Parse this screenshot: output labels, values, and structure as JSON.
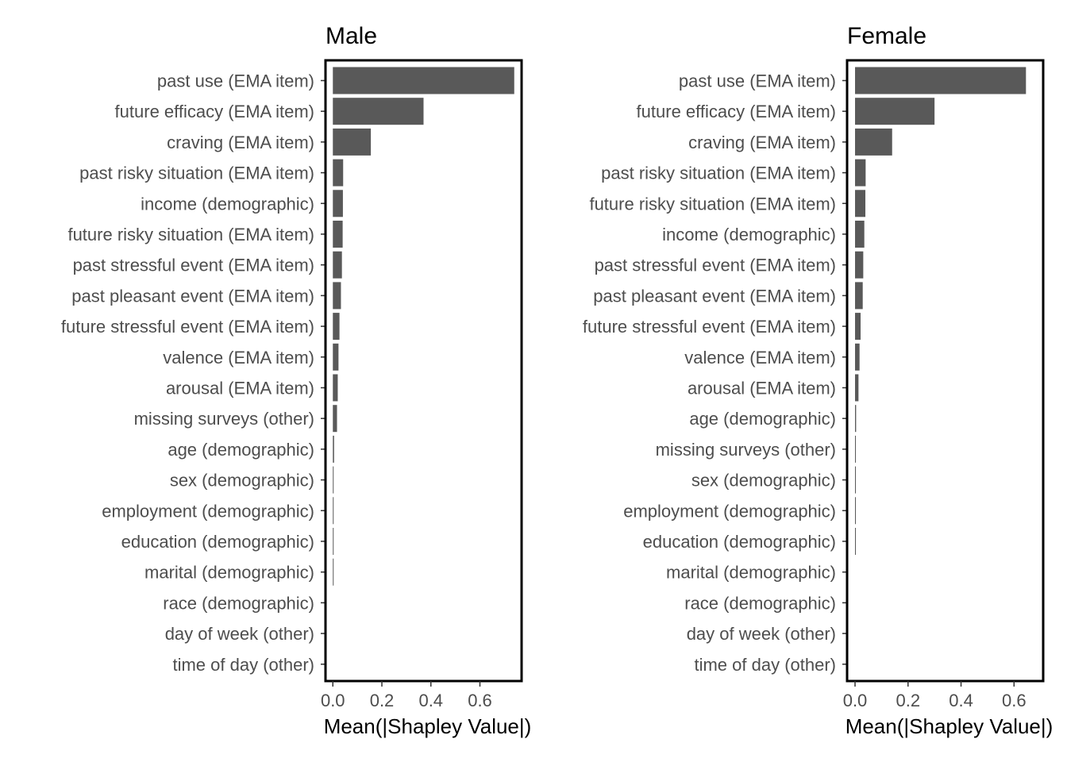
{
  "chart_data": [
    {
      "type": "bar",
      "orientation": "horizontal",
      "title": "Male",
      "xlabel": "Mean(|Shapley Value|)",
      "xlim": [
        -0.03,
        0.77
      ],
      "xticks": [
        {
          "value": 0.0,
          "label": "0.0"
        },
        {
          "value": 0.2,
          "label": "0.2"
        },
        {
          "value": 0.4,
          "label": "0.4"
        },
        {
          "value": 0.6,
          "label": "0.6"
        }
      ],
      "categories": [
        "past use (EMA item)",
        "future efficacy (EMA item)",
        "craving (EMA item)",
        "past risky situation (EMA item)",
        "income (demographic)",
        "future risky situation (EMA item)",
        "past stressful event (EMA item)",
        "past pleasant event (EMA item)",
        "future stressful event (EMA item)",
        "valence (EMA item)",
        "arousal (EMA item)",
        "missing surveys (other)",
        "age (demographic)",
        "sex (demographic)",
        "employment (demographic)",
        "education (demographic)",
        "marital (demographic)",
        "race (demographic)",
        "day of week (other)",
        "time of day (other)"
      ],
      "values": [
        0.74,
        0.37,
        0.155,
        0.042,
        0.041,
        0.04,
        0.037,
        0.033,
        0.027,
        0.023,
        0.02,
        0.017,
        0.005,
        0.003,
        0.003,
        0.003,
        0.002,
        0.0,
        0.0,
        0.0
      ]
    },
    {
      "type": "bar",
      "orientation": "horizontal",
      "title": "Female",
      "xlabel": "Mean(|Shapley Value|)",
      "xlim": [
        -0.03,
        0.71
      ],
      "xticks": [
        {
          "value": 0.0,
          "label": "0.0"
        },
        {
          "value": 0.2,
          "label": "0.2"
        },
        {
          "value": 0.4,
          "label": "0.4"
        },
        {
          "value": 0.6,
          "label": "0.6"
        }
      ],
      "categories": [
        "past use (EMA item)",
        "future efficacy (EMA item)",
        "craving (EMA item)",
        "past risky situation (EMA item)",
        "future risky situation (EMA item)",
        "income (demographic)",
        "past stressful event (EMA item)",
        "past pleasant event (EMA item)",
        "future stressful event (EMA item)",
        "valence (EMA item)",
        "arousal (EMA item)",
        "age (demographic)",
        "missing surveys (other)",
        "sex (demographic)",
        "employment (demographic)",
        "education (demographic)",
        "marital (demographic)",
        "race (demographic)",
        "day of week (other)",
        "time of day (other)"
      ],
      "values": [
        0.645,
        0.3,
        0.14,
        0.04,
        0.039,
        0.035,
        0.031,
        0.029,
        0.021,
        0.017,
        0.013,
        0.004,
        0.003,
        0.003,
        0.002,
        0.002,
        0.0,
        0.0,
        0.0,
        0.0
      ]
    }
  ]
}
